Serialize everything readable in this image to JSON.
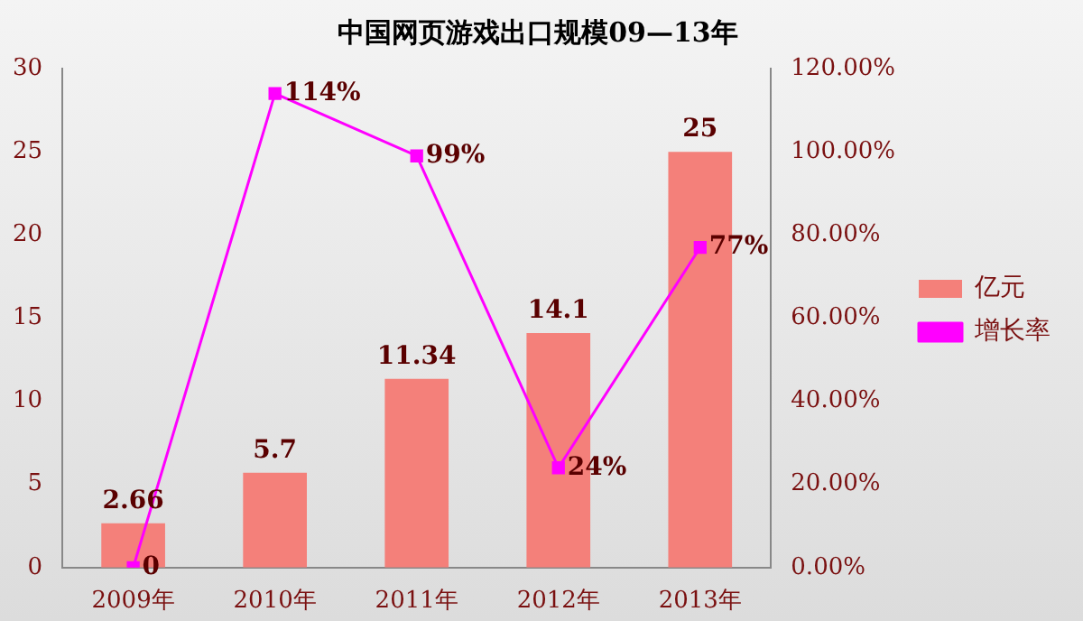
{
  "chart_data": {
    "type": "bar",
    "title": "中国网页游戏出口规模09—13年",
    "categories": [
      "2009年",
      "2010年",
      "2011年",
      "2012年",
      "2013年"
    ],
    "series": [
      {
        "name": "亿元",
        "color": "#f4807a",
        "values": [
          2.66,
          5.7,
          11.34,
          14.1,
          25
        ],
        "value_labels": [
          "2.66",
          "5.7",
          "11.34",
          "14.1",
          "25"
        ]
      },
      {
        "name": "增长率",
        "type": "line",
        "axis": "y2",
        "color": "#ff00ff",
        "marker": "square",
        "values": [
          0,
          114,
          99,
          24,
          77
        ],
        "value_labels": [
          "0",
          "114%",
          "99%",
          "24%",
          "77%"
        ]
      }
    ],
    "ylim": [
      0,
      30
    ],
    "yticks": [
      0,
      5,
      10,
      15,
      20,
      25,
      30
    ],
    "y2lim": [
      0,
      120
    ],
    "y2ticks": [
      {
        "value": 0,
        "label": "0.00%"
      },
      {
        "value": 20,
        "label": "20.00%"
      },
      {
        "value": 40,
        "label": "40.00%"
      },
      {
        "value": 60,
        "label": "60.00%"
      },
      {
        "value": 80,
        "label": "80.00%"
      },
      {
        "value": 100,
        "label": "100.00%"
      },
      {
        "value": 120,
        "label": "120.00%"
      }
    ],
    "grid": false,
    "legend": "right"
  }
}
